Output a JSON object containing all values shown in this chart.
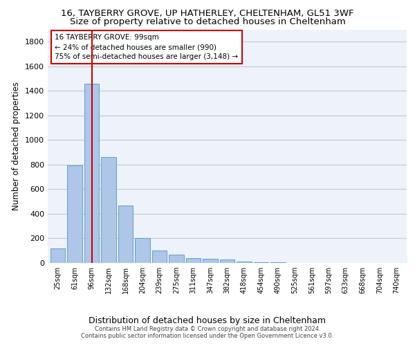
{
  "title_line1": "16, TAYBERRY GROVE, UP HATHERLEY, CHELTENHAM, GL51 3WF",
  "title_line2": "Size of property relative to detached houses in Cheltenham",
  "xlabel": "Distribution of detached houses by size in Cheltenham",
  "ylabel": "Number of detached properties",
  "footer_line1": "Contains HM Land Registry data © Crown copyright and database right 2024.",
  "footer_line2": "Contains public sector information licensed under the Open Government Licence v3.0.",
  "annotation_title": "16 TAYBERRY GROVE: 99sqm",
  "annotation_line2": "← 24% of detached houses are smaller (990)",
  "annotation_line3": "75% of semi-detached houses are larger (3,148) →",
  "bar_categories": [
    "25sqm",
    "61sqm",
    "96sqm",
    "132sqm",
    "168sqm",
    "204sqm",
    "239sqm",
    "275sqm",
    "311sqm",
    "347sqm",
    "382sqm",
    "418sqm",
    "454sqm",
    "490sqm",
    "525sqm",
    "561sqm",
    "597sqm",
    "633sqm",
    "668sqm",
    "704sqm",
    "740sqm"
  ],
  "bar_values": [
    120,
    795,
    1460,
    860,
    470,
    200,
    100,
    65,
    40,
    35,
    30,
    10,
    5,
    3,
    2,
    1,
    1,
    1,
    1,
    1,
    1
  ],
  "bar_color": "#aec6e8",
  "bar_edge_color": "#5a9fd4",
  "vline_x_index": 2,
  "vline_color": "#cc0000",
  "annotation_box_color": "#cc0000",
  "ylim": [
    0,
    1900
  ],
  "yticks": [
    0,
    200,
    400,
    600,
    800,
    1000,
    1200,
    1400,
    1600,
    1800
  ],
  "grid_color": "#c8c8c8",
  "bg_color": "#edf2fb",
  "title_fontsize": 9.5,
  "subtitle_fontsize": 9.5,
  "ylabel_fontsize": 8.5,
  "xlabel_fontsize": 9,
  "tick_fontsize": 8,
  "xtick_fontsize": 7
}
